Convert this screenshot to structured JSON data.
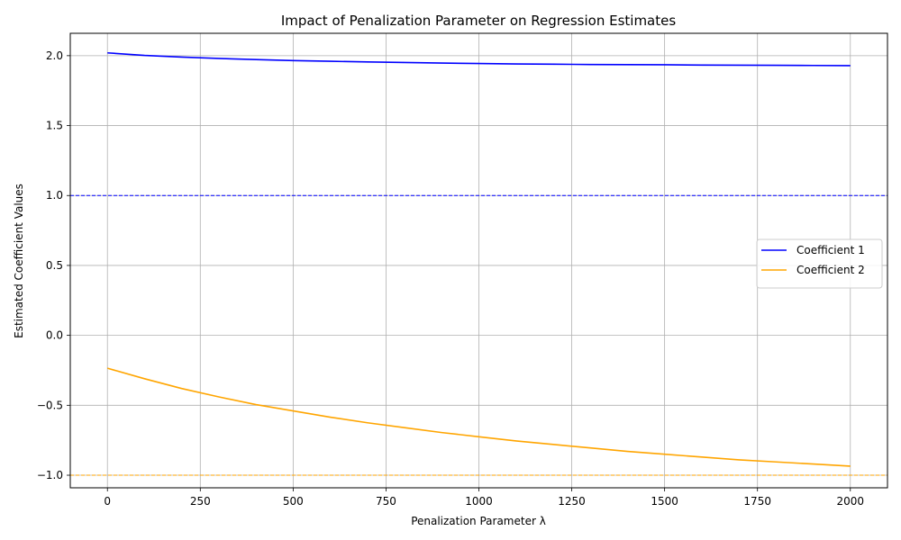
{
  "chart_data": {
    "type": "line",
    "title": "Impact of Penalization Parameter on Regression Estimates",
    "xlabel": "Penalization Parameter λ",
    "ylabel": "Estimated Coefficient Values",
    "xlim": [
      -100,
      2100
    ],
    "ylim": [
      -1.09,
      2.16
    ],
    "xticks": [
      0,
      250,
      500,
      750,
      1000,
      1250,
      1500,
      1750,
      2000
    ],
    "xtick_labels": [
      "0",
      "250",
      "500",
      "750",
      "1000",
      "1250",
      "1500",
      "1750",
      "2000"
    ],
    "yticks": [
      -1.0,
      -0.5,
      0.0,
      0.5,
      1.0,
      1.5,
      2.0
    ],
    "ytick_labels": [
      "−1.0",
      "−0.5",
      "0.0",
      "0.5",
      "1.0",
      "1.5",
      "2.0"
    ],
    "grid": true,
    "legend_position": "center-right",
    "x": [
      0,
      100,
      200,
      300,
      400,
      500,
      600,
      700,
      800,
      900,
      1000,
      1100,
      1200,
      1300,
      1400,
      1500,
      1600,
      1700,
      1800,
      1900,
      2000
    ],
    "series": [
      {
        "name": "Coefficient 1",
        "color": "#0000ff",
        "values": [
          2.02,
          2.002,
          1.99,
          1.98,
          1.972,
          1.965,
          1.96,
          1.955,
          1.951,
          1.947,
          1.944,
          1.941,
          1.939,
          1.937,
          1.936,
          1.935,
          1.933,
          1.932,
          1.931,
          1.93,
          1.929
        ]
      },
      {
        "name": "Coefficient 2",
        "color": "#ffa500",
        "values": [
          -0.235,
          -0.31,
          -0.38,
          -0.44,
          -0.495,
          -0.54,
          -0.585,
          -0.625,
          -0.66,
          -0.695,
          -0.725,
          -0.755,
          -0.78,
          -0.805,
          -0.83,
          -0.85,
          -0.87,
          -0.89,
          -0.905,
          -0.92,
          -0.935
        ]
      }
    ],
    "reference_lines": [
      {
        "y": 1.0,
        "color": "#0000ff",
        "style": "dashed"
      },
      {
        "y": -1.0,
        "color": "#ffa500",
        "style": "dashed"
      }
    ]
  }
}
